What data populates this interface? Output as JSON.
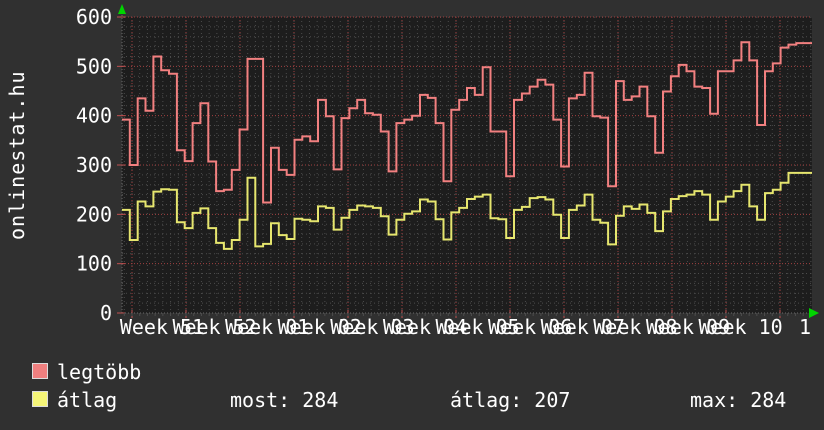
{
  "branding": {
    "site": "onlinestat.hu"
  },
  "chart_data": {
    "type": "line",
    "style": "step",
    "title": "",
    "x_axis": {
      "week_labels": [
        "Week 51",
        "Week 52",
        "Week 01",
        "Week 02",
        "Week 03",
        "Week 04",
        "Week 05",
        "Week 06",
        "Week 07",
        "Week 08",
        "Week 09",
        "Week 10"
      ],
      "partial_last_label": "1",
      "minor_grid": "daily",
      "major_grid": "weekly"
    },
    "y_axis": {
      "ticks": [
        0,
        100,
        200,
        300,
        400,
        500,
        600
      ],
      "min": 0,
      "max": 600,
      "minor_step": 20
    },
    "legend_position": "bottom-left",
    "grid": true,
    "series": [
      {
        "name": "legtöbb",
        "color": "#f28080",
        "values": [
          392,
          300,
          435,
          410,
          520,
          492,
          485,
          330,
          308,
          385,
          425,
          307,
          247,
          250,
          290,
          372,
          515,
          515,
          224,
          335,
          290,
          280,
          351,
          358,
          348,
          432,
          399,
          291,
          395,
          415,
          432,
          405,
          402,
          368,
          287,
          385,
          392,
          400,
          442,
          436,
          385,
          267,
          412,
          432,
          456,
          442,
          498,
          368,
          368,
          277,
          432,
          445,
          459,
          473,
          463,
          392,
          297,
          435,
          442,
          487,
          399,
          396,
          257,
          470,
          432,
          439,
          459,
          399,
          325,
          449,
          480,
          503,
          490,
          459,
          456,
          404,
          490,
          490,
          512,
          549,
          512,
          381,
          490,
          506,
          538,
          544,
          547,
          547
        ]
      },
      {
        "name": "átlag",
        "color": "#e6e66e",
        "values": [
          209,
          148,
          226,
          216,
          246,
          251,
          250,
          184,
          172,
          203,
          212,
          172,
          142,
          130,
          148,
          189,
          274,
          135,
          140,
          182,
          158,
          150,
          191,
          189,
          186,
          216,
          213,
          169,
          193,
          209,
          218,
          216,
          213,
          196,
          159,
          189,
          201,
          206,
          230,
          226,
          190,
          149,
          204,
          213,
          231,
          236,
          240,
          192,
          190,
          152,
          209,
          215,
          233,
          235,
          230,
          199,
          152,
          209,
          218,
          240,
          189,
          183,
          139,
          197,
          216,
          211,
          220,
          203,
          166,
          206,
          231,
          237,
          240,
          247,
          240,
          189,
          226,
          236,
          247,
          260,
          216,
          189,
          243,
          250,
          264,
          284,
          284,
          284
        ]
      }
    ]
  },
  "legend": {
    "items": [
      {
        "label": "legtöbb",
        "color": "#ef7f7f"
      },
      {
        "label": "átlag",
        "color": "#f5f578"
      }
    ],
    "stats": [
      {
        "label": "most:",
        "value": "284"
      },
      {
        "label": "átlag:",
        "value": "207"
      },
      {
        "label": "max:",
        "value": "284"
      }
    ]
  },
  "colors": {
    "background": "#303030",
    "plot_background": "#1d1d1d",
    "grid_minor": "#4c4c4c",
    "grid_major": "#a04040",
    "axis": "#6a6a6a",
    "tick": "#c05050",
    "arrow": "#00d400",
    "text": "#ffffff"
  }
}
